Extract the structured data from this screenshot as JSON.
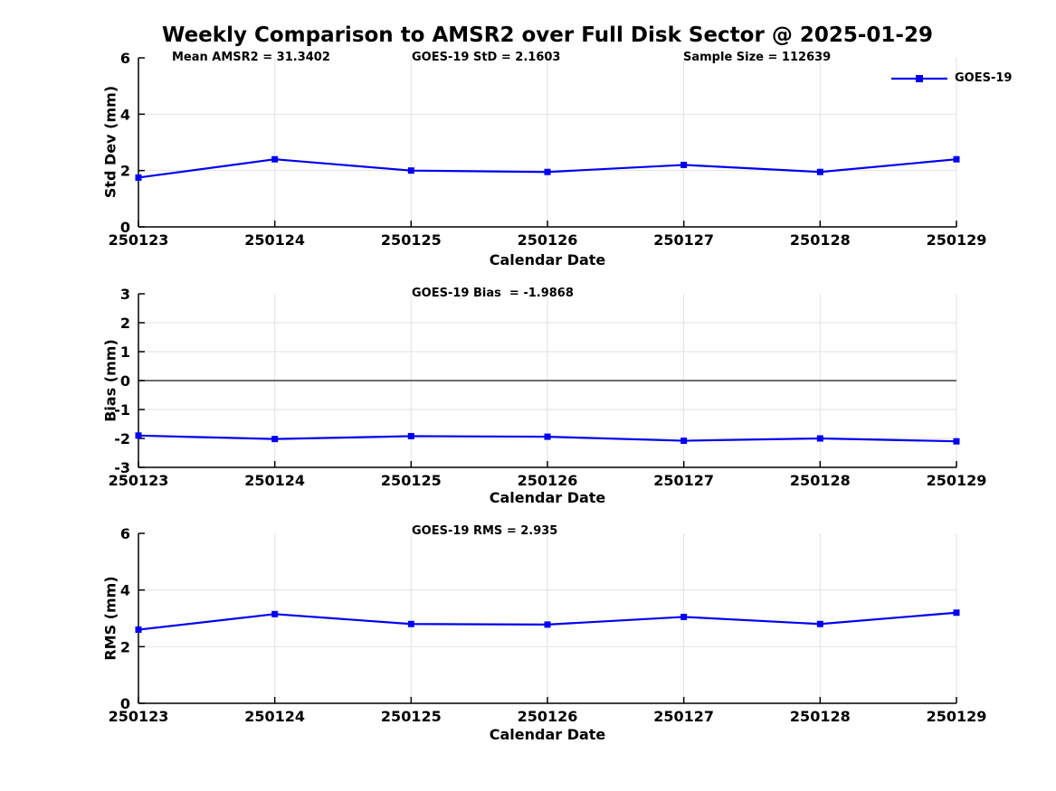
{
  "title": "Weekly Comparison to AMSR2 over Full Disk Sector @ 2025-01-29",
  "legend": {
    "label": "GOES-19"
  },
  "colors": {
    "line": "#0000EE",
    "grid": "#E2E2E2",
    "spine": "#000000",
    "zero_line": "#3C3C3C",
    "background": "#FFFFFF",
    "text": "#000000"
  },
  "chart_data": [
    {
      "type": "line",
      "name": "std-dev",
      "annotations": [
        {
          "text": "Mean AMSR2 = 31.3402"
        },
        {
          "text": "GOES-19 StD = 2.1603"
        },
        {
          "text": "Sample Size = 112639"
        }
      ],
      "categories": [
        "250123",
        "250124",
        "250125",
        "250126",
        "250127",
        "250128",
        "250129"
      ],
      "series": [
        {
          "name": "GOES-19",
          "values": [
            1.75,
            2.4,
            2.0,
            1.95,
            2.2,
            1.95,
            2.4
          ]
        }
      ],
      "xlabel": "Calendar Date",
      "ylabel": "Std Dev (mm)",
      "ylim": [
        0,
        6
      ],
      "yticks": [
        0,
        2,
        4,
        6
      ],
      "grid": true,
      "zero_line": false,
      "legend_position": "top-right"
    },
    {
      "type": "line",
      "name": "bias",
      "annotations": [
        {
          "text": "GOES-19 Bias  = -1.9868"
        }
      ],
      "categories": [
        "250123",
        "250124",
        "250125",
        "250126",
        "250127",
        "250128",
        "250129"
      ],
      "series": [
        {
          "name": "GOES-19",
          "values": [
            -1.9,
            -2.02,
            -1.92,
            -1.94,
            -2.08,
            -2.0,
            -2.1
          ]
        }
      ],
      "xlabel": "Calendar Date",
      "ylabel": "Bias (mm)",
      "ylim": [
        -3,
        3
      ],
      "yticks": [
        -3,
        -2,
        -1,
        0,
        1,
        2,
        3
      ],
      "grid": true,
      "zero_line": true,
      "legend_position": "none"
    },
    {
      "type": "line",
      "name": "rms",
      "annotations": [
        {
          "text": "GOES-19 RMS = 2.935"
        }
      ],
      "categories": [
        "250123",
        "250124",
        "250125",
        "250126",
        "250127",
        "250128",
        "250129"
      ],
      "series": [
        {
          "name": "GOES-19",
          "values": [
            2.6,
            3.15,
            2.8,
            2.78,
            3.05,
            2.8,
            3.2
          ]
        }
      ],
      "xlabel": "Calendar Date",
      "ylabel": "RMS (mm)",
      "ylim": [
        0,
        6
      ],
      "yticks": [
        0,
        2,
        4,
        6
      ],
      "grid": true,
      "zero_line": false,
      "legend_position": "none"
    }
  ]
}
